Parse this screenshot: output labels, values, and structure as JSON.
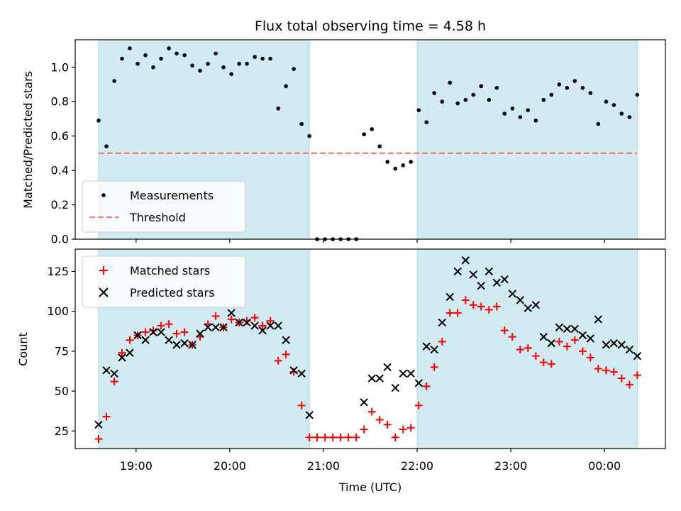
{
  "chart_data": [
    {
      "type": "scatter",
      "title": "Flux total observing time = 4.58 h",
      "ylabel": "Matched/Predicted stars",
      "xlabel": "",
      "ylim": [
        0,
        1.16
      ],
      "xlim_hours": [
        18.35,
        24.65
      ],
      "yticks": [
        0.0,
        0.2,
        0.4,
        0.6,
        0.8,
        1.0
      ],
      "ytick_labels": [
        "0.0",
        "0.2",
        "0.4",
        "0.6",
        "0.8",
        "1.0"
      ],
      "grid": false,
      "legend_position": "bottom-left",
      "shaded_spans": [
        [
          18.6,
          20.85
        ],
        [
          22.0,
          24.35
        ]
      ],
      "shade_color": "#add8e6",
      "series": [
        {
          "name": "Measurements",
          "marker": "dot",
          "color": "#000000",
          "x": [
            18.6,
            18.683,
            18.767,
            18.85,
            18.933,
            19.017,
            19.1,
            19.183,
            19.267,
            19.35,
            19.433,
            19.517,
            19.6,
            19.683,
            19.767,
            19.85,
            19.933,
            20.017,
            20.1,
            20.183,
            20.267,
            20.35,
            20.433,
            20.517,
            20.6,
            20.683,
            20.767,
            20.85,
            20.933,
            21.017,
            21.1,
            21.183,
            21.267,
            21.35,
            21.433,
            21.517,
            21.6,
            21.683,
            21.767,
            21.85,
            21.933,
            22.017,
            22.1,
            22.183,
            22.267,
            22.35,
            22.433,
            22.517,
            22.6,
            22.683,
            22.767,
            22.85,
            22.933,
            23.017,
            23.1,
            23.183,
            23.267,
            23.35,
            23.433,
            23.517,
            23.6,
            23.683,
            23.767,
            23.85,
            23.933,
            24.017,
            24.1,
            24.183,
            24.267,
            24.35
          ],
          "values": [
            0.69,
            0.54,
            0.92,
            1.05,
            1.11,
            1.02,
            1.07,
            1.0,
            1.05,
            1.11,
            1.08,
            1.07,
            1.01,
            0.98,
            1.02,
            1.08,
            1.0,
            0.96,
            1.02,
            1.02,
            1.06,
            1.05,
            1.05,
            0.76,
            0.89,
            0.99,
            0.67,
            0.6,
            0.0,
            0.0,
            0.0,
            0.0,
            0.0,
            0.0,
            0.61,
            0.64,
            0.54,
            0.45,
            0.41,
            0.43,
            0.45,
            0.75,
            0.68,
            0.85,
            0.8,
            0.91,
            0.79,
            0.81,
            0.84,
            0.89,
            0.81,
            0.88,
            0.73,
            0.76,
            0.71,
            0.75,
            0.69,
            0.81,
            0.84,
            0.9,
            0.88,
            0.92,
            0.88,
            0.85,
            0.67,
            0.8,
            0.78,
            0.73,
            0.71,
            0.84
          ]
        },
        {
          "name": "Threshold",
          "style": "dashed",
          "color": "#f08080",
          "value": 0.5,
          "x_range": [
            18.6,
            24.35
          ]
        }
      ]
    },
    {
      "type": "scatter",
      "title": "",
      "ylabel": "Count",
      "xlabel": "Time (UTC)",
      "ylim": [
        14,
        139
      ],
      "xlim_hours": [
        18.35,
        24.65
      ],
      "yticks": [
        25,
        50,
        75,
        100,
        125
      ],
      "ytick_labels": [
        "25",
        "50",
        "75",
        "100",
        "125"
      ],
      "xticks_hours": [
        19,
        20,
        21,
        22,
        23,
        24
      ],
      "xtick_labels": [
        "19:00",
        "20:00",
        "21:00",
        "22:00",
        "23:00",
        "00:00"
      ],
      "grid": false,
      "legend_position": "top-left",
      "shaded_spans": [
        [
          18.6,
          20.85
        ],
        [
          22.0,
          24.35
        ]
      ],
      "shade_color": "#add8e6",
      "series": [
        {
          "name": "Matched stars",
          "marker": "plus",
          "color": "#ff0000",
          "x": [
            18.6,
            18.683,
            18.767,
            18.85,
            18.933,
            19.017,
            19.1,
            19.183,
            19.267,
            19.35,
            19.433,
            19.517,
            19.6,
            19.683,
            19.767,
            19.85,
            19.933,
            20.017,
            20.1,
            20.183,
            20.267,
            20.35,
            20.433,
            20.517,
            20.6,
            20.683,
            20.767,
            20.85,
            20.933,
            21.017,
            21.1,
            21.183,
            21.267,
            21.35,
            21.433,
            21.517,
            21.6,
            21.683,
            21.767,
            21.85,
            21.933,
            22.017,
            22.1,
            22.183,
            22.267,
            22.35,
            22.433,
            22.517,
            22.6,
            22.683,
            22.767,
            22.85,
            22.933,
            23.017,
            23.1,
            23.183,
            23.267,
            23.35,
            23.433,
            23.517,
            23.6,
            23.683,
            23.767,
            23.85,
            23.933,
            24.017,
            24.1,
            24.183,
            24.267,
            24.35
          ],
          "values": [
            20,
            34,
            56,
            74,
            82,
            85,
            87,
            88,
            91,
            92,
            86,
            87,
            79,
            84,
            92,
            97,
            90,
            95,
            93,
            94,
            96,
            91,
            94,
            69,
            73,
            62,
            41,
            21,
            21,
            21,
            21,
            21,
            21,
            21,
            26,
            37,
            32,
            29,
            21,
            26,
            27,
            41,
            53,
            65,
            81,
            99,
            99,
            107,
            104,
            103,
            101,
            103,
            88,
            84,
            76,
            77,
            72,
            68,
            67,
            81,
            78,
            82,
            75,
            71,
            64,
            63,
            62,
            58,
            54,
            60
          ]
        },
        {
          "name": "Predicted stars",
          "marker": "x",
          "color": "#000000",
          "x": [
            18.6,
            18.683,
            18.767,
            18.85,
            18.933,
            19.017,
            19.1,
            19.183,
            19.267,
            19.35,
            19.433,
            19.517,
            19.6,
            19.683,
            19.767,
            19.85,
            19.933,
            20.017,
            20.1,
            20.183,
            20.267,
            20.35,
            20.433,
            20.517,
            20.6,
            20.683,
            20.767,
            20.85,
            21.433,
            21.517,
            21.6,
            21.683,
            21.767,
            21.85,
            21.933,
            22.017,
            22.1,
            22.183,
            22.267,
            22.35,
            22.433,
            22.517,
            22.6,
            22.683,
            22.767,
            22.85,
            22.933,
            23.017,
            23.1,
            23.183,
            23.267,
            23.35,
            23.433,
            23.517,
            23.6,
            23.683,
            23.767,
            23.85,
            23.933,
            24.017,
            24.1,
            24.183,
            24.267,
            24.35
          ],
          "values": [
            29,
            63,
            61,
            71,
            74,
            85,
            82,
            87,
            87,
            82,
            79,
            80,
            79,
            86,
            90,
            90,
            90,
            99,
            93,
            93,
            91,
            88,
            91,
            91,
            82,
            63,
            61,
            35,
            43,
            58,
            58,
            65,
            52,
            61,
            61,
            55,
            78,
            76,
            93,
            109,
            125,
            132,
            123,
            116,
            125,
            118,
            120,
            111,
            107,
            102,
            104,
            84,
            80,
            90,
            89,
            89,
            85,
            83,
            95,
            79,
            80,
            79,
            76,
            72
          ]
        }
      ]
    }
  ]
}
